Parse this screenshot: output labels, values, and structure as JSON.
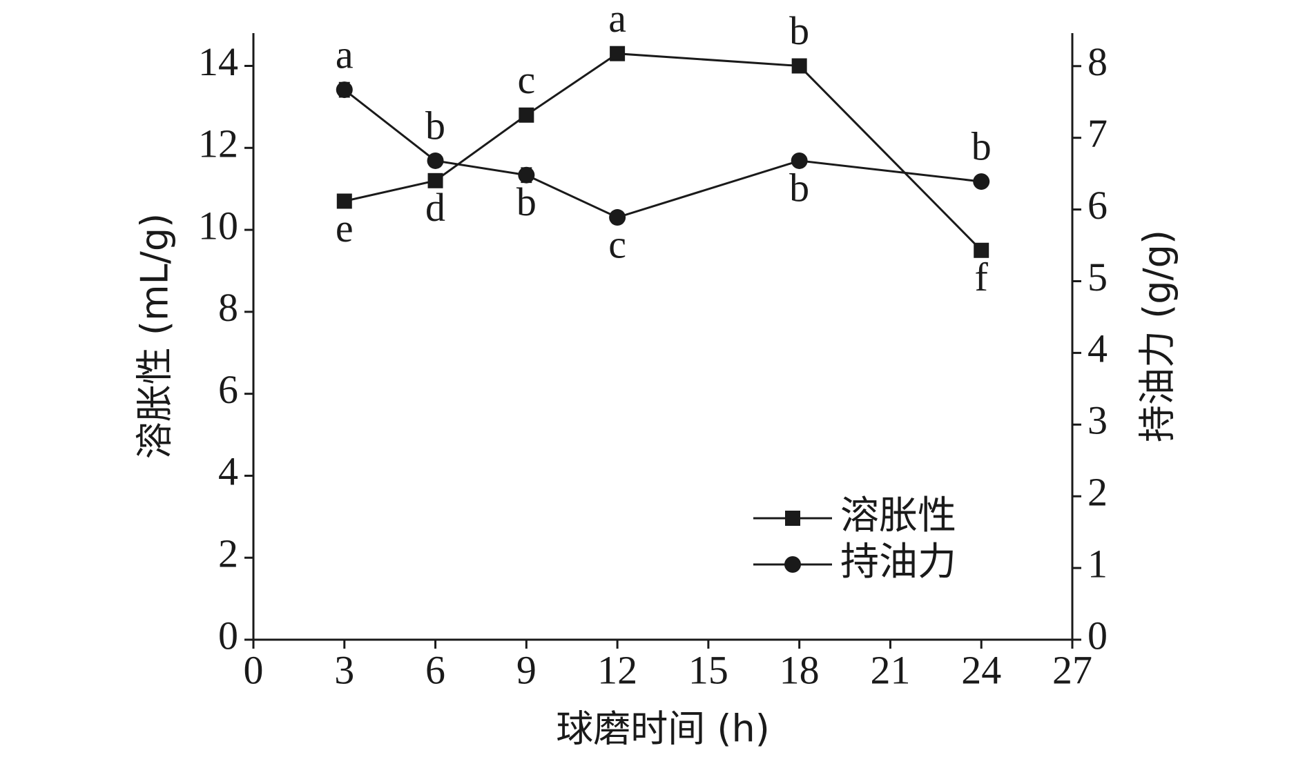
{
  "chart_data": {
    "type": "line",
    "xlabel": "球磨时间 (h)",
    "ylabel": "溶胀性 (mL/g)",
    "y2label": "持油力 (g/g)",
    "x": [
      3,
      6,
      9,
      12,
      18,
      24
    ],
    "xlim": [
      0,
      27
    ],
    "xticks": [
      0,
      3,
      6,
      9,
      12,
      15,
      18,
      21,
      24,
      27
    ],
    "ylim": [
      0,
      14.8
    ],
    "yticks": [
      0,
      2,
      4,
      6,
      8,
      10,
      12,
      14
    ],
    "y2lim": [
      0,
      8.46
    ],
    "y2ticks": [
      0,
      1,
      2,
      3,
      4,
      5,
      6,
      7,
      8
    ],
    "legend": "lower right",
    "series": [
      {
        "name": "溶胀性",
        "color": "#1a1a1a",
        "marker": "square",
        "axis": "y",
        "values": [
          10.7,
          11.2,
          12.8,
          14.3,
          14.0,
          9.5
        ],
        "errors": [
          0.05,
          0.15,
          0.05,
          0.15,
          0.05,
          0.05
        ],
        "letters": [
          "e",
          "d",
          "c",
          "a",
          "b",
          "f"
        ]
      },
      {
        "name": "持油力",
        "color": "#1a1a1a",
        "marker": "circle",
        "axis": "y2",
        "values": [
          7.67,
          6.68,
          6.48,
          5.89,
          6.68,
          6.39
        ],
        "errors": [
          0.1,
          0.08,
          0.1,
          0.08,
          0.06,
          0.04
        ],
        "letters": [
          "a",
          "b",
          "b",
          "c",
          "b",
          "b"
        ]
      }
    ]
  }
}
